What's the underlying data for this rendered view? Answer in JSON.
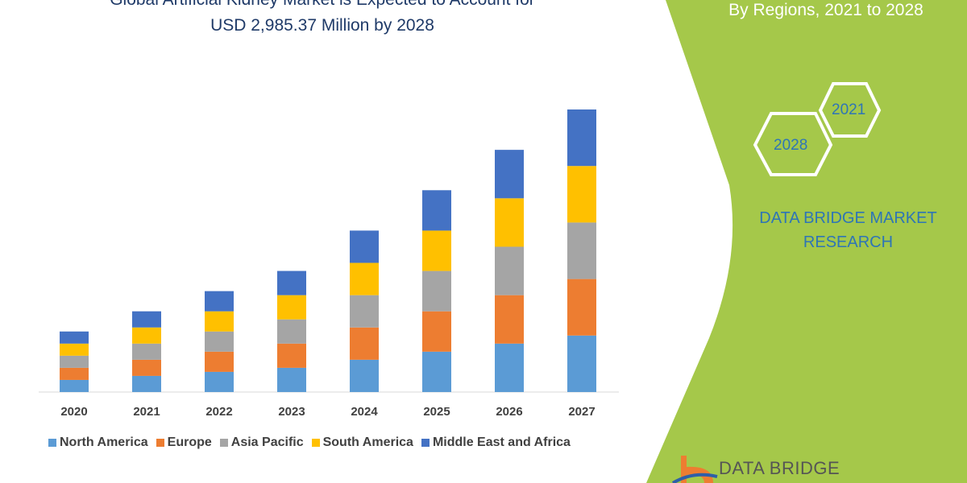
{
  "title_line1": "Global Artificial Kidney Market is Expected to Account for",
  "title_line2": "USD 2,985.37 Million by 2028",
  "side_panel": {
    "subtitle": "By Regions, 2021 to 2028",
    "hex_years": [
      "2021",
      "2028"
    ],
    "brand_text": "DATA BRIDGE MARKET RESEARCH",
    "logo_text": "DATA BRIDGE",
    "color": "#a5c84a"
  },
  "chart_data": {
    "type": "bar",
    "stacked": true,
    "categories": [
      "2020",
      "2021",
      "2022",
      "2023",
      "2024",
      "2025",
      "2026",
      "2027"
    ],
    "series": [
      {
        "name": "North America",
        "color": "#5b9bd5",
        "values": [
          15,
          20,
          25,
          30,
          40,
          50,
          60,
          70
        ]
      },
      {
        "name": "Europe",
        "color": "#ed7d31",
        "values": [
          15,
          20,
          25,
          30,
          40,
          50,
          60,
          70
        ]
      },
      {
        "name": "Asia Pacific",
        "color": "#a5a5a5",
        "values": [
          15,
          20,
          25,
          30,
          40,
          50,
          60,
          70
        ]
      },
      {
        "name": "South America",
        "color": "#ffc000",
        "values": [
          15,
          20,
          25,
          30,
          40,
          50,
          60,
          70
        ]
      },
      {
        "name": "Middle East and Africa",
        "color": "#4472c4",
        "values": [
          15,
          20,
          25,
          30,
          40,
          50,
          60,
          70
        ]
      }
    ],
    "ylim": [
      0,
      350
    ],
    "y_axis_shown": false,
    "grid": false,
    "legend_position": "bottom"
  }
}
